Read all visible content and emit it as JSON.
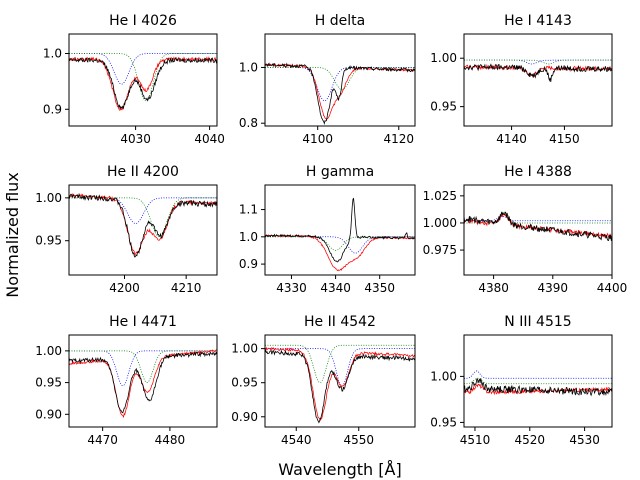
{
  "figure": {
    "xlabel": "Wavelength [Å]",
    "ylabel": "Normalized flux"
  },
  "series_styles": {
    "observed": {
      "color": "#000000",
      "style": "solid"
    },
    "model": {
      "color": "#ff0000",
      "style": "solid"
    },
    "component_blue": {
      "color": "#0000ff",
      "style": "dotted"
    },
    "component_green": {
      "color": "#008000",
      "style": "dotted"
    }
  },
  "chart_data": [
    {
      "type": "line",
      "title": "He I 4026",
      "xlim": [
        4021,
        4041
      ],
      "ylim": [
        0.87,
        1.035
      ],
      "xticks": [
        4030,
        4040
      ],
      "yticks": [
        0.9,
        1.0
      ],
      "ytick_labels": [
        "0.9",
        "1.0"
      ],
      "lines": [
        {
          "role": "component_blue",
          "center": 4028.1,
          "depth": 0.055,
          "width": 1.0,
          "base": 1.0
        },
        {
          "role": "component_green",
          "center": 4031.4,
          "depth": 0.085,
          "width": 1.0,
          "base": 1.0
        },
        {
          "role": "model",
          "base": 0.99,
          "tilt": 0.0,
          "noise": 0.003,
          "lines": [
            {
              "c": 4028.0,
              "d": 0.09,
              "w": 1.1
            },
            {
              "c": 4031.4,
              "d": 0.055,
              "w": 0.9
            }
          ]
        },
        {
          "role": "observed",
          "base": 0.988,
          "tilt": 0.0,
          "noise": 0.004,
          "lines": [
            {
              "c": 4028.1,
              "d": 0.085,
              "w": 1.05
            },
            {
              "c": 4031.6,
              "d": 0.07,
              "w": 1.0
            }
          ]
        }
      ]
    },
    {
      "type": "line",
      "title": "H delta",
      "xlim": [
        4087,
        4124
      ],
      "ylim": [
        0.79,
        1.12
      ],
      "xticks": [
        4100,
        4120
      ],
      "yticks": [
        0.8,
        1.0
      ],
      "ytick_labels": [
        "0.8",
        "1.0"
      ],
      "lines": [
        {
          "role": "component_blue",
          "center": 4101.7,
          "depth": 0.12,
          "width": 1.8,
          "base": 1.0
        },
        {
          "role": "component_green",
          "center": 4106.0,
          "depth": 0.08,
          "width": 1.8,
          "base": 1.0
        },
        {
          "role": "model",
          "base": 1.0,
          "tilt": -0.02,
          "noise": 0.004,
          "lines": [
            {
              "c": 4102.0,
              "d": 0.18,
              "w": 1.7
            },
            {
              "c": 4105.6,
              "d": 0.08,
              "w": 1.5
            }
          ]
        },
        {
          "role": "observed",
          "base": 1.0,
          "tilt": -0.02,
          "noise": 0.006,
          "lines": [
            {
              "c": 4101.6,
              "d": 0.2,
              "w": 1.5
            },
            {
              "c": 4105.2,
              "d": 0.1,
              "w": 0.7
            }
          ]
        }
      ]
    },
    {
      "type": "line",
      "title": "He I 4143",
      "xlim": [
        4131,
        4159
      ],
      "ylim": [
        0.93,
        1.025
      ],
      "xticks": [
        4140,
        4150
      ],
      "yticks": [
        0.95,
        1.0
      ],
      "ytick_labels": [
        "0.95",
        "1.00"
      ],
      "lines": [
        {
          "role": "component_blue",
          "center": 4143.8,
          "depth": 0.004,
          "width": 1.0,
          "base": 0.998
        },
        {
          "role": "component_green",
          "center": 4147.0,
          "depth": 0.004,
          "width": 1.0,
          "base": 0.998
        },
        {
          "role": "model",
          "base": 0.99,
          "tilt": -0.002,
          "noise": 0.002,
          "lines": [
            {
              "c": 4143.8,
              "d": 0.008,
              "w": 1.0
            }
          ]
        },
        {
          "role": "observed",
          "base": 0.99,
          "tilt": -0.002,
          "noise": 0.003,
          "lines": [
            {
              "c": 4144.0,
              "d": 0.008,
              "w": 0.9
            },
            {
              "c": 4147.3,
              "d": 0.012,
              "w": 0.4
            }
          ]
        }
      ]
    },
    {
      "type": "line",
      "title": "He II 4200",
      "xlim": [
        4191,
        4215
      ],
      "ylim": [
        0.91,
        1.015
      ],
      "xticks": [
        4200,
        4210
      ],
      "yticks": [
        0.95,
        1.0
      ],
      "ytick_labels": [
        "0.95",
        "1.00"
      ],
      "lines": [
        {
          "role": "component_blue",
          "center": 4201.8,
          "depth": 0.03,
          "width": 1.3,
          "base": 1.0
        },
        {
          "role": "component_green",
          "center": 4205.6,
          "depth": 0.045,
          "width": 1.3,
          "base": 1.0
        },
        {
          "role": "model",
          "base": 0.998,
          "tilt": -0.01,
          "noise": 0.002,
          "lines": [
            {
              "c": 4201.8,
              "d": 0.063,
              "w": 1.3
            },
            {
              "c": 4205.6,
              "d": 0.045,
              "w": 1.3
            }
          ]
        },
        {
          "role": "observed",
          "base": 0.997,
          "tilt": -0.01,
          "noise": 0.003,
          "lines": [
            {
              "c": 4201.8,
              "d": 0.065,
              "w": 1.2
            },
            {
              "c": 4205.8,
              "d": 0.04,
              "w": 1.2
            }
          ]
        }
      ]
    },
    {
      "type": "line",
      "title": "H gamma",
      "xlim": [
        4324,
        4358
      ],
      "ylim": [
        0.86,
        1.19
      ],
      "xticks": [
        4330,
        4340,
        4350
      ],
      "yticks": [
        0.9,
        1.0,
        1.1
      ],
      "ytick_labels": [
        "0.9",
        "1.0",
        "1.1"
      ],
      "lines": [
        {
          "role": "component_blue",
          "center": 4344.5,
          "depth": 0.06,
          "width": 1.6,
          "base": 1.0
        },
        {
          "role": "component_green",
          "center": 4340.0,
          "depth": 0.05,
          "width": 1.6,
          "base": 1.0
        },
        {
          "role": "model",
          "base": 1.0,
          "tilt": -0.01,
          "noise": 0.003,
          "lines": [
            {
              "c": 4340.5,
              "d": 0.12,
              "w": 2.2
            },
            {
              "c": 4345.0,
              "d": 0.06,
              "w": 1.8
            }
          ]
        },
        {
          "role": "observed",
          "base": 1.0,
          "tilt": -0.01,
          "noise": 0.004,
          "lines": [
            {
              "c": 4340.3,
              "d": 0.09,
              "w": 1.6
            },
            {
              "c": 4344.0,
              "d": -0.15,
              "w": 0.35
            },
            {
              "c": 4356.0,
              "d": -0.02,
              "w": 0.2
            }
          ]
        }
      ]
    },
    {
      "type": "line",
      "title": "He I 4388",
      "xlim": [
        4375,
        4400
      ],
      "ylim": [
        0.952,
        1.035
      ],
      "xticks": [
        4380,
        4390,
        4400
      ],
      "yticks": [
        0.975,
        1.0,
        1.025
      ],
      "ytick_labels": [
        "0.975",
        "1.000",
        "1.025"
      ],
      "lines": [
        {
          "role": "component_blue",
          "center": 4381.5,
          "depth": -0.004,
          "width": 0.8,
          "base": 1.002
        },
        {
          "role": "component_green",
          "center": 4381.8,
          "depth": -0.01,
          "width": 0.7,
          "base": 1.0
        },
        {
          "role": "model",
          "base": 0.995,
          "tilt": -0.014,
          "noise": 0.002,
          "lines": [
            {
              "c": 4381.8,
              "d": -0.008,
              "w": 0.8
            }
          ]
        },
        {
          "role": "observed",
          "base": 0.995,
          "tilt": -0.018,
          "noise": 0.003,
          "lines": [
            {
              "c": 4381.8,
              "d": -0.01,
              "w": 0.7
            }
          ]
        }
      ]
    },
    {
      "type": "line",
      "title": "He I 4471",
      "xlim": [
        4465,
        4487
      ],
      "ylim": [
        0.88,
        1.025
      ],
      "xticks": [
        4470,
        4480
      ],
      "yticks": [
        0.9,
        0.95,
        1.0
      ],
      "ytick_labels": [
        "0.90",
        "0.95",
        "1.00"
      ],
      "lines": [
        {
          "role": "component_blue",
          "center": 4473.0,
          "depth": 0.055,
          "width": 0.9,
          "base": 1.0
        },
        {
          "role": "component_green",
          "center": 4476.6,
          "depth": 0.05,
          "width": 0.9,
          "base": 1.0
        },
        {
          "role": "model",
          "base": 0.99,
          "tilt": 0.02,
          "noise": 0.002,
          "lines": [
            {
              "c": 4473.0,
              "d": 0.09,
              "w": 1.0
            },
            {
              "c": 4476.7,
              "d": 0.055,
              "w": 1.0
            }
          ]
        },
        {
          "role": "observed",
          "base": 0.99,
          "tilt": 0.012,
          "noise": 0.003,
          "lines": [
            {
              "c": 4472.9,
              "d": 0.085,
              "w": 1.0
            },
            {
              "c": 4476.9,
              "d": 0.07,
              "w": 1.0
            }
          ]
        }
      ]
    },
    {
      "type": "line",
      "title": "He II 4542",
      "xlim": [
        4535,
        4559
      ],
      "ylim": [
        0.885,
        1.02
      ],
      "xticks": [
        4540,
        4550
      ],
      "yticks": [
        0.9,
        0.95,
        1.0
      ],
      "ytick_labels": [
        "0.90",
        "0.95",
        "1.00"
      ],
      "lines": [
        {
          "role": "component_blue",
          "center": 4547.3,
          "depth": 0.055,
          "width": 0.9,
          "base": 1.0
        },
        {
          "role": "component_green",
          "center": 4543.8,
          "depth": 0.055,
          "width": 1.0,
          "base": 1.005
        },
        {
          "role": "model",
          "base": 0.995,
          "tilt": -0.01,
          "noise": 0.002,
          "lines": [
            {
              "c": 4543.8,
              "d": 0.1,
              "w": 1.1
            },
            {
              "c": 4547.4,
              "d": 0.05,
              "w": 1.0
            }
          ]
        },
        {
          "role": "observed",
          "base": 0.99,
          "tilt": -0.01,
          "noise": 0.003,
          "lines": [
            {
              "c": 4543.6,
              "d": 0.098,
              "w": 1.0
            },
            {
              "c": 4547.3,
              "d": 0.05,
              "w": 1.0
            }
          ]
        }
      ]
    },
    {
      "type": "line",
      "title": "N III 4515",
      "xlim": [
        4508,
        4535
      ],
      "ylim": [
        0.945,
        1.045
      ],
      "xticks": [
        4510,
        4520,
        4530
      ],
      "yticks": [
        0.95,
        1.0
      ],
      "ytick_labels": [
        "0.95",
        "1.00"
      ],
      "lines": [
        {
          "role": "component_blue",
          "center": 4510.3,
          "depth": -0.008,
          "width": 0.6,
          "base": 0.998
        },
        {
          "role": "component_green",
          "center": 4510.5,
          "depth": -0.006,
          "width": 0.7,
          "base": 0.992
        },
        {
          "role": "model",
          "base": 0.984,
          "tilt": 0.004,
          "noise": 0.002,
          "lines": [
            {
              "c": 4510.6,
              "d": -0.008,
              "w": 0.8
            }
          ]
        },
        {
          "role": "observed",
          "base": 0.985,
          "tilt": -0.004,
          "noise": 0.004,
          "lines": [
            {
              "c": 4510.6,
              "d": -0.01,
              "w": 0.7
            }
          ]
        }
      ]
    }
  ]
}
